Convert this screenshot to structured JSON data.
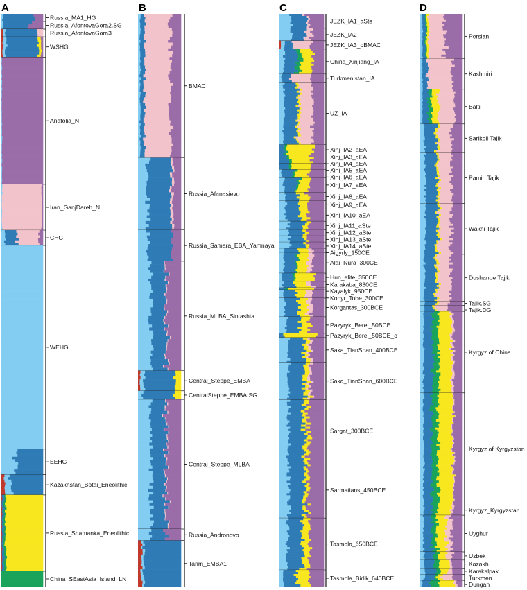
{
  "colors": {
    "sky": "#82cdf1",
    "blue": "#2e7bb6",
    "purple": "#9a6ca8",
    "pink": "#f3c3cb",
    "yellow": "#f8e71e",
    "green": "#1aa35a",
    "red": "#c0392b"
  },
  "chart_data": {
    "type": "stacked-bar",
    "description_note": "ADMIXTURE-style ancestry proportions per individual (horizontal stacked bars), grouped by population",
    "component_order": [
      "red",
      "sky",
      "blue",
      "green",
      "yellow",
      "pink",
      "purple"
    ],
    "panels": [
      {
        "letter": "A",
        "groups": [
          {
            "label": "Russia_MA1_HG",
            "n": 3,
            "mix": {
              "sky": 0.05,
              "blue": 0.75,
              "purple": 0.2
            }
          },
          {
            "label": "Russia_AfontovaGora2.SG",
            "n": 3,
            "mix": {
              "sky": 0.05,
              "blue": 0.65,
              "purple": 0.3
            }
          },
          {
            "label": "Russia_AfontovaGora3",
            "n": 3,
            "mix": {
              "red": 0.04,
              "sky": 0.05,
              "blue": 0.78,
              "pink": 0.13
            }
          },
          {
            "label": "WSHG",
            "n": 8,
            "mix": {
              "red": 0.05,
              "sky": 0.07,
              "blue": 0.76,
              "yellow": 0.07,
              "purple": 0.05
            }
          },
          {
            "label": "Anatolia_N",
            "n": 50,
            "mix": {
              "sky": 0.03,
              "purple": 0.97
            }
          },
          {
            "label": "Iran_GanjDareh_N",
            "n": 18,
            "mix": {
              "sky": 0.03,
              "pink": 0.94,
              "purple": 0.03
            }
          },
          {
            "label": "CHG",
            "n": 6,
            "mix": {
              "sky": 0.1,
              "blue": 0.25,
              "pink": 0.55,
              "purple": 0.1
            }
          },
          {
            "label": "WEHG",
            "n": 80,
            "mix": {
              "sky": 1.0
            }
          },
          {
            "label": "EEHG",
            "n": 10,
            "mix": {
              "sky": 0.35,
              "blue": 0.65
            }
          },
          {
            "label": "Kazakhstan_Botai_Eneolithic",
            "n": 8,
            "mix": {
              "red": 0.1,
              "sky": 0.15,
              "blue": 0.75
            }
          },
          {
            "label": "Russia_Shamanka_Eneolithic",
            "n": 30,
            "mix": {
              "red": 0.03,
              "blue": 0.05,
              "green": 0.04,
              "yellow": 0.88
            }
          },
          {
            "label": "China_SEastAsia_Island_LN",
            "n": 6,
            "mix": {
              "green": 1.0
            }
          }
        ]
      },
      {
        "letter": "B",
        "groups": [
          {
            "label": "BMAC",
            "n": 50,
            "mix": {
              "sky": 0.05,
              "blue": 0.1,
              "pink": 0.6,
              "purple": 0.25
            }
          },
          {
            "label": "Russia_Afanasievo",
            "n": 25,
            "mix": {
              "sky": 0.22,
              "blue": 0.55,
              "pink": 0.05,
              "purple": 0.18
            }
          },
          {
            "label": "Russia_Samara_EBA_Yamnaya",
            "n": 11,
            "mix": {
              "sky": 0.25,
              "blue": 0.55,
              "purple": 0.2
            }
          },
          {
            "label": "Russia_MLBA_Sintashta",
            "n": 38,
            "mix": {
              "sky": 0.3,
              "blue": 0.35,
              "pink": 0.02,
              "purple": 0.33
            }
          },
          {
            "label": "Central_Steppe_EMBA",
            "n": 7,
            "mix": {
              "red": 0.05,
              "sky": 0.1,
              "blue": 0.72,
              "yellow": 0.13
            }
          },
          {
            "label": "CentralSteppe_EMBA.SG",
            "n": 3,
            "mix": {
              "sky": 0.1,
              "blue": 0.75,
              "yellow": 0.15
            }
          },
          {
            "label": "Central_Steppe_MLBA",
            "n": 45,
            "mix": {
              "sky": 0.3,
              "blue": 0.35,
              "pink": 0.02,
              "purple": 0.33
            }
          },
          {
            "label": "Russia_Andronovo",
            "n": 4,
            "mix": {
              "sky": 0.3,
              "blue": 0.35,
              "purple": 0.35
            }
          },
          {
            "label": "Tarim_EMBA1",
            "n": 16,
            "mix": {
              "red": 0.08,
              "sky": 0.05,
              "blue": 0.87
            }
          }
        ]
      },
      {
        "letter": "C",
        "groups": [
          {
            "label": "JEZK_IA1_aSte",
            "n": 7,
            "mix": {
              "sky": 0.25,
              "blue": 0.35,
              "pink": 0.05,
              "purple": 0.35
            }
          },
          {
            "label": "JEZK_IA2",
            "n": 6,
            "mix": {
              "sky": 0.25,
              "blue": 0.3,
              "pink": 0.15,
              "purple": 0.3
            }
          },
          {
            "label": "JEZK_IA3_oBMAC",
            "n": 4,
            "mix": {
              "red": 0.03,
              "sky": 0.1,
              "blue": 0.17,
              "pink": 0.4,
              "purple": 0.3
            }
          },
          {
            "label": "China_Xinjiang_IA",
            "n": 12,
            "mix": {
              "sky": 0.1,
              "blue": 0.3,
              "green": 0.1,
              "yellow": 0.25,
              "purple": 0.25
            }
          },
          {
            "label": "Turkmenistan_IA",
            "n": 4,
            "mix": {
              "sky": 0.05,
              "blue": 0.2,
              "pink": 0.45,
              "purple": 0.3
            }
          },
          {
            "label": "UZ_IA",
            "n": 30,
            "mix": {
              "sky": 0.1,
              "blue": 0.3,
              "yellow": 0.05,
              "pink": 0.3,
              "purple": 0.25
            }
          },
          {
            "label": "Xinj_IA2_aEA",
            "n": 5,
            "mix": {
              "blue": 0.1,
              "green": 0.07,
              "yellow": 0.6,
              "purple": 0.23
            }
          },
          {
            "label": "Xinj_IA3_aEA",
            "n": 2,
            "mix": {
              "blue": 0.15,
              "green": 0.05,
              "yellow": 0.5,
              "purple": 0.3
            }
          },
          {
            "label": "Xinj_IA4_aEA",
            "n": 2,
            "mix": {
              "blue": 0.2,
              "green": 0.05,
              "yellow": 0.45,
              "purple": 0.3
            }
          },
          {
            "label": "Xinj_IA5_aEA",
            "n": 3,
            "mix": {
              "blue": 0.25,
              "green": 0.05,
              "yellow": 0.4,
              "purple": 0.3
            }
          },
          {
            "label": "Xinj_IA6_aEA",
            "n": 4,
            "mix": {
              "sky": 0.05,
              "blue": 0.25,
              "green": 0.05,
              "yellow": 0.35,
              "purple": 0.3
            }
          },
          {
            "label": "Xinj_IA7_aEA",
            "n": 7,
            "mix": {
              "sky": 0.1,
              "blue": 0.3,
              "green": 0.04,
              "yellow": 0.26,
              "purple": 0.3
            }
          },
          {
            "label": "Xinj_IA8_aEA",
            "n": 4,
            "mix": {
              "sky": 0.12,
              "blue": 0.3,
              "yellow": 0.23,
              "purple": 0.35
            }
          },
          {
            "label": "Xinj_IA9_aEA",
            "n": 4,
            "mix": {
              "sky": 0.15,
              "blue": 0.3,
              "yellow": 0.2,
              "purple": 0.35
            }
          },
          {
            "label": "Xinj_IA10_aEA",
            "n": 6,
            "mix": {
              "sky": 0.15,
              "blue": 0.32,
              "yellow": 0.18,
              "purple": 0.35
            }
          },
          {
            "label": "Xinj_IA11_aSte",
            "n": 4,
            "mix": {
              "sky": 0.2,
              "blue": 0.35,
              "yellow": 0.1,
              "purple": 0.35
            }
          },
          {
            "label": "Xinj_IA12_aSte",
            "n": 3,
            "mix": {
              "sky": 0.2,
              "blue": 0.35,
              "yellow": 0.1,
              "purple": 0.35
            }
          },
          {
            "label": "Xinj_IA13_aSte",
            "n": 3,
            "mix": {
              "sky": 0.22,
              "blue": 0.35,
              "yellow": 0.08,
              "purple": 0.35
            }
          },
          {
            "label": "Xinj_IA14_aSte",
            "n": 3,
            "mix": {
              "sky": 0.22,
              "blue": 0.35,
              "yellow": 0.08,
              "purple": 0.35
            }
          },
          {
            "label": "Aigyrly_150CE",
            "n": 2,
            "mix": {
              "sky": 0.1,
              "blue": 0.3,
              "yellow": 0.25,
              "pink": 0.1,
              "purple": 0.25
            }
          },
          {
            "label": "Alai_Nura_300CE",
            "n": 10,
            "mix": {
              "sky": 0.1,
              "blue": 0.3,
              "green": 0.03,
              "yellow": 0.22,
              "pink": 0.1,
              "purple": 0.25
            }
          },
          {
            "label": "Hun_elite_350CE",
            "n": 4,
            "mix": {
              "sky": 0.05,
              "blue": 0.25,
              "green": 0.05,
              "yellow": 0.45,
              "purple": 0.2
            }
          },
          {
            "label": "Karakaba_830CE",
            "n": 3,
            "mix": {
              "sky": 0.08,
              "blue": 0.27,
              "yellow": 0.3,
              "pink": 0.1,
              "purple": 0.25
            }
          },
          {
            "label": "Kayalyk_950CE",
            "n": 1,
            "mix": {
              "blue": 0.15,
              "green": 0.05,
              "yellow": 0.6,
              "purple": 0.2
            }
          },
          {
            "label": "Konyr_Tobe_300CE",
            "n": 4,
            "mix": {
              "sky": 0.1,
              "blue": 0.3,
              "yellow": 0.2,
              "pink": 0.15,
              "purple": 0.25
            }
          },
          {
            "label": "Korgantas_300BCE",
            "n": 9,
            "mix": {
              "sky": 0.12,
              "blue": 0.3,
              "yellow": 0.18,
              "pink": 0.1,
              "purple": 0.3
            }
          },
          {
            "label": "Pazyryk_Berel_50BCE",
            "n": 8,
            "mix": {
              "sky": 0.15,
              "blue": 0.3,
              "yellow": 0.2,
              "purple": 0.35
            }
          },
          {
            "label": "Pazyryk_Berel_50BCE_o",
            "n": 2,
            "mix": {
              "blue": 0.1,
              "yellow": 0.75,
              "purple": 0.15
            }
          },
          {
            "label": "Saka_TianShan_400BCE",
            "n": 12,
            "mix": {
              "sky": 0.2,
              "blue": 0.35,
              "yellow": 0.1,
              "pink": 0.05,
              "purple": 0.3
            }
          },
          {
            "label": "Saka_TianShan_600BCE",
            "n": 18,
            "mix": {
              "sky": 0.2,
              "blue": 0.35,
              "yellow": 0.1,
              "pink": 0.05,
              "purple": 0.3
            }
          },
          {
            "label": "Sargat_300BCE",
            "n": 30,
            "mix": {
              "sky": 0.2,
              "blue": 0.35,
              "yellow": 0.1,
              "purple": 0.35
            }
          },
          {
            "label": "Sarmatians_450BCE",
            "n": 27,
            "mix": {
              "sky": 0.22,
              "blue": 0.35,
              "yellow": 0.08,
              "purple": 0.35
            }
          },
          {
            "label": "Tasmola_650BCE",
            "n": 25,
            "mix": {
              "sky": 0.18,
              "blue": 0.35,
              "yellow": 0.15,
              "purple": 0.32
            }
          },
          {
            "label": "Tasmola_Birlik_640BCE",
            "n": 8,
            "mix": {
              "sky": 0.1,
              "blue": 0.3,
              "yellow": 0.3,
              "purple": 0.3
            }
          }
        ]
      },
      {
        "letter": "D",
        "groups": [
          {
            "label": "Persian",
            "n": 22,
            "mix": {
              "sky": 0.05,
              "blue": 0.08,
              "green": 0.03,
              "yellow": 0.05,
              "pink": 0.39,
              "purple": 0.4
            }
          },
          {
            "label": "Kashmiri",
            "n": 15,
            "mix": {
              "sky": 0.05,
              "blue": 0.12,
              "pink": 0.6,
              "purple": 0.23
            }
          },
          {
            "label": "Balti",
            "n": 17,
            "mix": {
              "sky": 0.05,
              "blue": 0.15,
              "green": 0.08,
              "yellow": 0.15,
              "pink": 0.4,
              "purple": 0.17
            }
          },
          {
            "label": "Sarikoli Tajik",
            "n": 14,
            "mix": {
              "sky": 0.1,
              "blue": 0.28,
              "yellow": 0.05,
              "pink": 0.32,
              "purple": 0.25
            }
          },
          {
            "label": "Pamiri Tajik",
            "n": 25,
            "mix": {
              "sky": 0.12,
              "blue": 0.28,
              "yellow": 0.05,
              "pink": 0.3,
              "purple": 0.25
            }
          },
          {
            "label": "Wakhi Tajik",
            "n": 25,
            "mix": {
              "sky": 0.12,
              "blue": 0.28,
              "yellow": 0.05,
              "pink": 0.3,
              "purple": 0.25
            }
          },
          {
            "label": "Dushanbe Tajik",
            "n": 23,
            "mix": {
              "sky": 0.1,
              "blue": 0.28,
              "yellow": 0.05,
              "pink": 0.3,
              "purple": 0.27
            }
          },
          {
            "label": "Tajik.SG",
            "n": 2,
            "mix": {
              "sky": 0.1,
              "blue": 0.25,
              "yellow": 0.05,
              "pink": 0.3,
              "purple": 0.3
            }
          },
          {
            "label": "Tajik.DG",
            "n": 3,
            "mix": {
              "sky": 0.1,
              "blue": 0.25,
              "yellow": 0.05,
              "pink": 0.3,
              "purple": 0.3
            }
          },
          {
            "label": "Kyrgyz of China",
            "n": 40,
            "mix": {
              "sky": 0.08,
              "blue": 0.22,
              "green": 0.15,
              "yellow": 0.3,
              "pink": 0.05,
              "purple": 0.2
            }
          },
          {
            "label": "Kyrgyz of Kyrgyzstan",
            "n": 55,
            "mix": {
              "sky": 0.08,
              "blue": 0.2,
              "green": 0.15,
              "yellow": 0.35,
              "pink": 0.02,
              "purple": 0.2
            }
          },
          {
            "label": "Kyrgyz_Kyrgyzstan",
            "n": 5,
            "mix": {
              "sky": 0.08,
              "blue": 0.2,
              "green": 0.12,
              "yellow": 0.35,
              "pink": 0.05,
              "purple": 0.2
            }
          },
          {
            "label": "Uyghur",
            "n": 18,
            "mix": {
              "sky": 0.08,
              "blue": 0.2,
              "green": 0.12,
              "yellow": 0.22,
              "pink": 0.13,
              "purple": 0.25
            }
          },
          {
            "label": "Uzbek",
            "n": 4,
            "mix": {
              "sky": 0.1,
              "blue": 0.22,
              "green": 0.1,
              "yellow": 0.18,
              "pink": 0.15,
              "purple": 0.25
            }
          },
          {
            "label": "Kazakh",
            "n": 4,
            "mix": {
              "sky": 0.1,
              "blue": 0.25,
              "green": 0.12,
              "yellow": 0.25,
              "pink": 0.05,
              "purple": 0.23
            }
          },
          {
            "label": "Karakalpak",
            "n": 3,
            "mix": {
              "sky": 0.1,
              "blue": 0.25,
              "green": 0.1,
              "yellow": 0.2,
              "pink": 0.1,
              "purple": 0.25
            }
          },
          {
            "label": "Turkmen",
            "n": 3,
            "mix": {
              "sky": 0.1,
              "blue": 0.25,
              "green": 0.05,
              "yellow": 0.1,
              "pink": 0.25,
              "purple": 0.25
            }
          },
          {
            "label": "Dungan",
            "n": 3,
            "mix": {
              "sky": 0.05,
              "blue": 0.2,
              "green": 0.2,
              "yellow": 0.35,
              "pink": 0.05,
              "purple": 0.15
            }
          }
        ]
      }
    ]
  }
}
